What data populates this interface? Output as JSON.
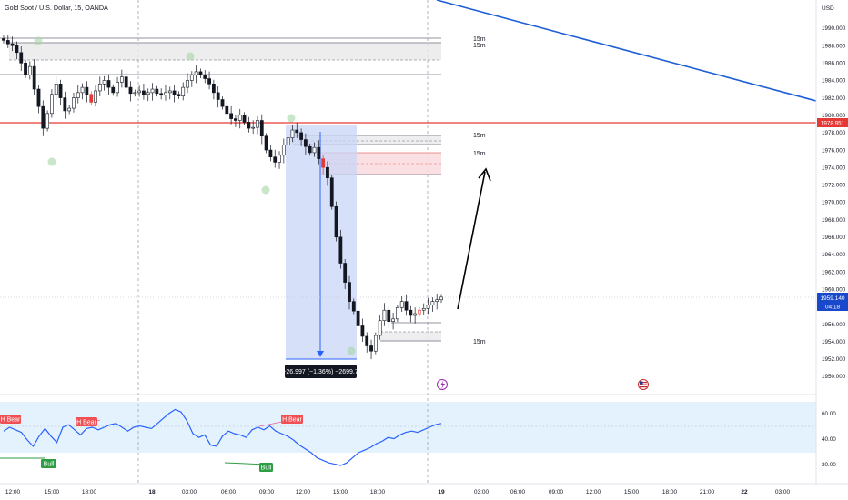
{
  "header": {
    "symbol_title": "Gold Spot / U.S. Dollar, 15, OANDA"
  },
  "price_axis": {
    "currency": "USD",
    "ticks": [
      "1990.000",
      "1988.000",
      "1986.000",
      "1984.000",
      "1982.000",
      "1980.000",
      "1978.000",
      "1976.000",
      "1974.000",
      "1972.000",
      "1970.000",
      "1968.000",
      "1966.000",
      "1964.000",
      "1962.000",
      "1960.000",
      "1958.000",
      "1956.000",
      "1954.000",
      "1952.000",
      "1950.000"
    ],
    "red_line_label": "1978.951",
    "last_price_label": "1959.140",
    "countdown_label": "04:18"
  },
  "osc_axis": {
    "ticks": [
      "60.00",
      "40.00",
      "20.00"
    ]
  },
  "time_axis": {
    "ticks": [
      "12:00",
      "15:00",
      "18:00",
      "18",
      "03:00",
      "06:00",
      "09:00",
      "12:00",
      "15:00",
      "18:00",
      "19",
      "03:00",
      "06:00",
      "09:00",
      "12:00",
      "15:00",
      "18:00",
      "21:00",
      "22",
      "03:00"
    ]
  },
  "annotations": {
    "zone_labels": [
      "15m",
      "15m",
      "15m",
      "15m",
      "15m"
    ],
    "measure_label": "−26.997 (−1.36%) −2699.7",
    "h_bear_1": "H Bear",
    "h_bear_2": "H Bear",
    "h_bear_3": "H Bear",
    "bull_1": "Bull",
    "bull_2": "Bull"
  },
  "colors": {
    "red_line": "#e53935",
    "trend_line": "#1e5fd6",
    "last_price": "#1848cc",
    "measure_fill": "#c9d6f7",
    "bear": "#f04f53",
    "bull": "#2e9e44",
    "osc_line": "#2962ff",
    "osc_band": "#e3f2fd"
  },
  "chart_data": {
    "type": "candlestick",
    "price_scale": [
      1950,
      1990
    ],
    "last_price": 1959.14,
    "red_level": 1978.951,
    "close_path": [
      1988.6,
      1988.2,
      1988.0,
      1987.2,
      1986.0,
      1984.6,
      1985.6,
      1983.0,
      1981.0,
      1978.5,
      1980.2,
      1982.4,
      1983.6,
      1982.0,
      1980.5,
      1980.8,
      1982.0,
      1982.6,
      1983.2,
      1982.4,
      1981.5,
      1982.8,
      1983.6,
      1984.0,
      1983.2,
      1982.6,
      1983.8,
      1984.4,
      1983.2,
      1982.5,
      1982.6,
      1982.8,
      1982.4,
      1982.6,
      1983.0,
      1982.5,
      1982.3,
      1982.6,
      1982.8,
      1982.4,
      1982.2,
      1983.2,
      1984.0,
      1984.6,
      1985.0,
      1984.6,
      1984.2,
      1983.6,
      1982.6,
      1981.8,
      1981.0,
      1980.2,
      1979.6,
      1979.4,
      1980.0,
      1979.2,
      1978.5,
      1978.6,
      1979.4,
      1977.6,
      1976.0,
      1975.2,
      1974.6,
      1975.4,
      1976.6,
      1977.4,
      1978.3,
      1978.0,
      1977.2,
      1976.4,
      1975.7,
      1976.3,
      1975.0,
      1974.0,
      1972.8,
      1969.5,
      1966.0,
      1963.0,
      1960.8,
      1958.6,
      1957.5,
      1955.8,
      1954.6,
      1953.5,
      1952.9,
      1954.7,
      1956.4,
      1957.6,
      1956.3,
      1956.6,
      1957.9,
      1958.6,
      1957.6,
      1957.0,
      1957.2,
      1957.6,
      1957.8,
      1958.2,
      1958.6,
      1958.8,
      1959.1
    ],
    "oscillator": {
      "scale": [
        10,
        70
      ],
      "levels": [
        30,
        70
      ],
      "values": [
        47,
        50,
        48,
        46,
        40,
        35,
        43,
        49,
        43,
        38,
        50,
        52,
        48,
        44,
        49,
        50,
        48,
        50,
        52,
        53,
        50,
        47,
        50,
        51,
        50,
        49,
        53,
        57,
        61,
        64,
        62,
        55,
        45,
        42,
        44,
        36,
        35,
        43,
        47,
        45,
        44,
        42,
        48,
        50,
        48,
        51,
        47,
        45,
        43,
        40,
        36,
        33,
        30,
        26,
        24,
        22,
        21,
        20,
        22,
        26,
        30,
        32,
        34,
        37,
        39,
        42,
        41,
        44,
        46,
        47,
        46,
        48,
        50,
        52,
        53
      ]
    }
  }
}
